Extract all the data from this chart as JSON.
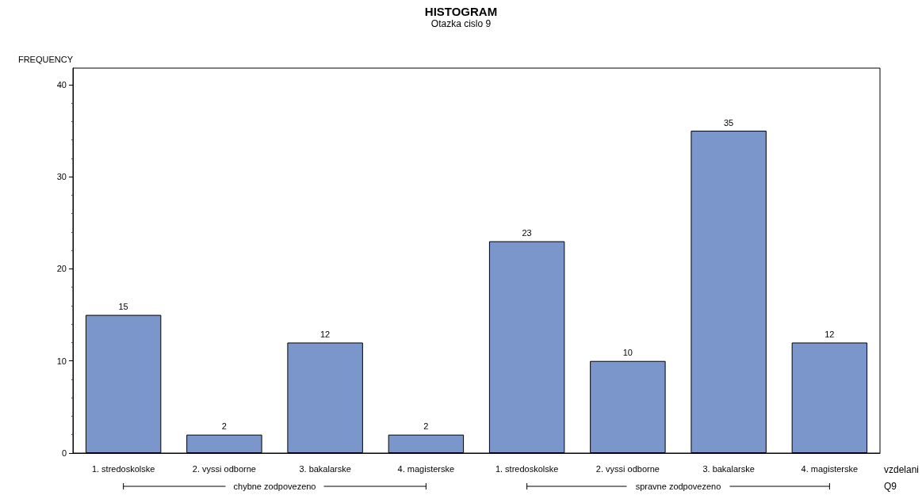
{
  "chart_data": {
    "type": "bar",
    "title": "HISTOGRAM",
    "subtitle": "Otazka cislo 9",
    "ylabel": "FREQUENCY",
    "xlabel": "vzdelani",
    "categories": [
      "1. stredoskolske",
      "2. vyssi odborne",
      "3. bakalarske",
      "4. magisterske",
      "1. stredoskolske",
      "2. vyssi odborne",
      "3. bakalarske",
      "4. magisterske"
    ],
    "values": [
      15,
      2,
      12,
      2,
      23,
      10,
      35,
      12
    ],
    "color": "#7b96cb",
    "ylim": [
      0,
      41.8
    ],
    "yticks": [
      0,
      10,
      20,
      30,
      40
    ],
    "grid": false,
    "data_labels": true,
    "annotations": [
      "chybne zodpovezeno",
      "spravne zodpovezeno",
      "Q9"
    ]
  }
}
